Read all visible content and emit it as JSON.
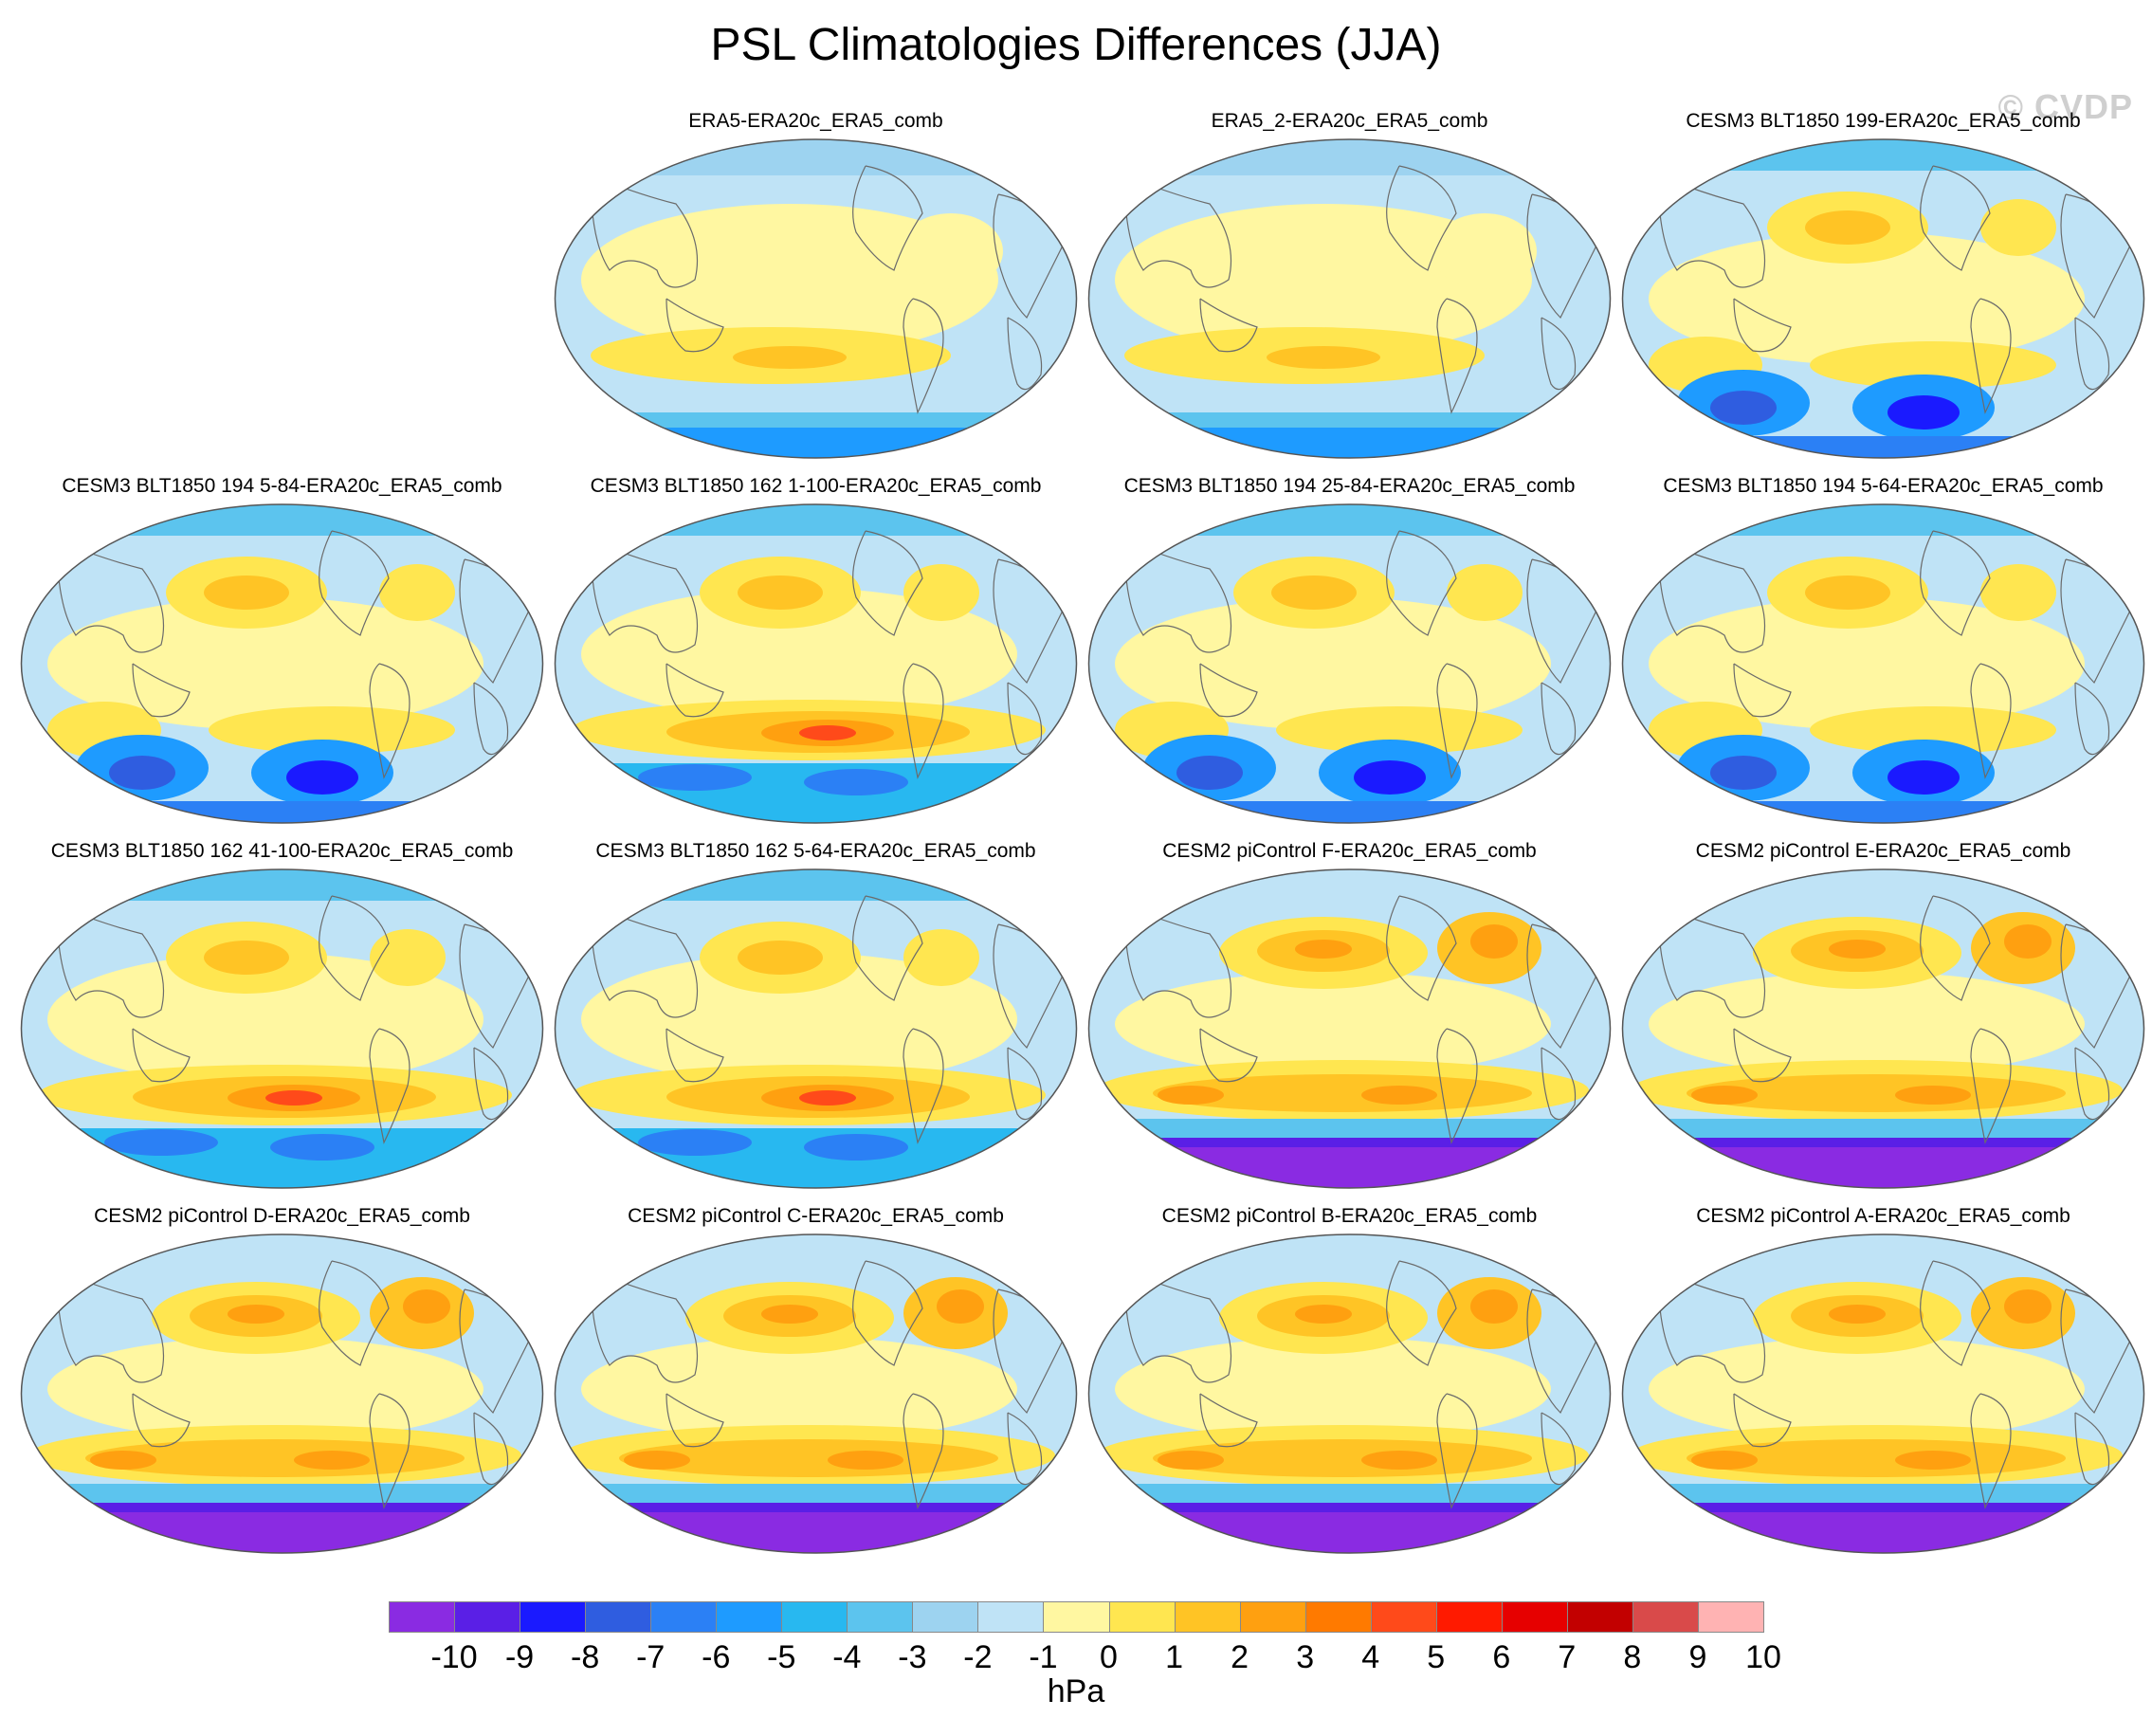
{
  "title": "PSL Climatologies Differences (JJA)",
  "watermark": "© CVDP",
  "colors": {
    "bins": [
      "#8a2be2",
      "#5a1fe6",
      "#1a1aff",
      "#2f5de0",
      "#2b80f5",
      "#1e9bff",
      "#28b8f0",
      "#5cc4ee",
      "#9dd3f0",
      "#bfe3f6",
      "#fff7a1",
      "#ffe650",
      "#ffc425",
      "#ffa010",
      "#ff7a00",
      "#ff4a1a",
      "#ff1a00",
      "#e60000",
      "#c20000",
      "#d94a4a",
      "#ffb3b3"
    ],
    "coast": "#6b6b6b"
  },
  "colorbar": {
    "levels": [
      "-10",
      "-9",
      "-8",
      "-7",
      "-6",
      "-5",
      "-4",
      "-3",
      "-2",
      "-1",
      "0",
      "1",
      "2",
      "3",
      "4",
      "5",
      "6",
      "7",
      "8",
      "9",
      "10"
    ],
    "units": "hPa"
  },
  "panels": [
    {
      "title": "ERA5-ERA20c_ERA5_comb",
      "style": "era5"
    },
    {
      "title": "ERA5_2-ERA20c_ERA5_comb",
      "style": "era5"
    },
    {
      "title": "CESM3 BLT1850 199-ERA20c_ERA5_comb",
      "style": "cesm3"
    },
    {
      "title": "CESM3 BLT1850 194 5-84-ERA20c_ERA5_comb",
      "style": "cesm3"
    },
    {
      "title": "CESM3 BLT1850 162 1-100-ERA20c_ERA5_comb",
      "style": "cesm3b"
    },
    {
      "title": "CESM3 BLT1850 194 25-84-ERA20c_ERA5_comb",
      "style": "cesm3"
    },
    {
      "title": "CESM3 BLT1850 194 5-64-ERA20c_ERA5_comb",
      "style": "cesm3"
    },
    {
      "title": "CESM3 BLT1850 162 41-100-ERA20c_ERA5_comb",
      "style": "cesm3b"
    },
    {
      "title": "CESM3 BLT1850 162 5-64-ERA20c_ERA5_comb",
      "style": "cesm3b"
    },
    {
      "title": "CESM2 piControl F-ERA20c_ERA5_comb",
      "style": "cesm2"
    },
    {
      "title": "CESM2 piControl E-ERA20c_ERA5_comb",
      "style": "cesm2"
    },
    {
      "title": "CESM2 piControl D-ERA20c_ERA5_comb",
      "style": "cesm2"
    },
    {
      "title": "CESM2 piControl C-ERA20c_ERA5_comb",
      "style": "cesm2"
    },
    {
      "title": "CESM2 piControl B-ERA20c_ERA5_comb",
      "style": "cesm2"
    },
    {
      "title": "CESM2 piControl A-ERA20c_ERA5_comb",
      "style": "cesm2"
    }
  ]
}
